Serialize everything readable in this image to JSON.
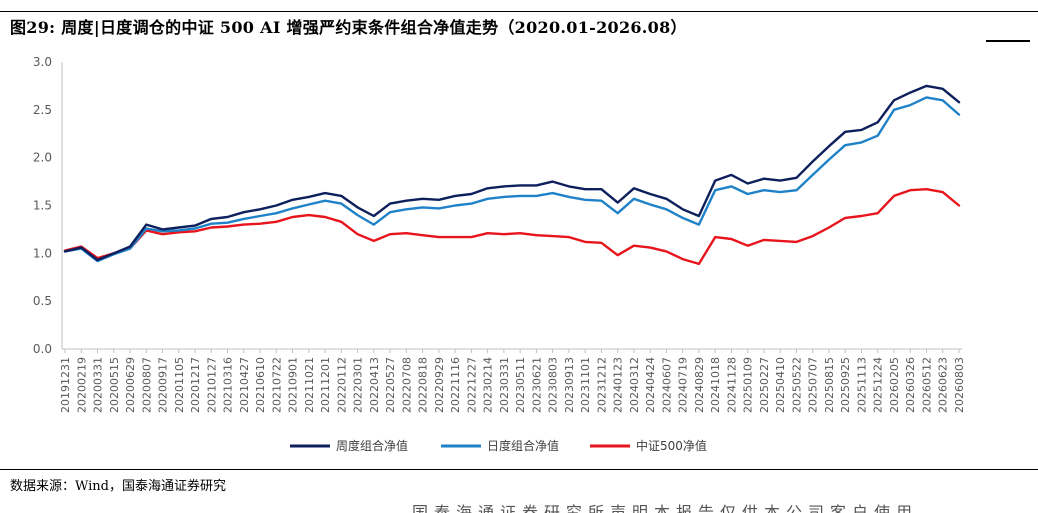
{
  "figure": {
    "title": "图29:  周度|日度调仓的中证 500 AI 增强严约束条件组合净值走势（2020.01-2026.08）",
    "source": "数据来源：Wind，国泰海通证券研究",
    "cutoff_text": "国泰海通证券研究所声明本报告仅供本公司客户使用"
  },
  "chart_data": {
    "type": "line",
    "title": "",
    "xlabel": "",
    "ylabel": "",
    "ylim": [
      0.0,
      3.0
    ],
    "yticks": [
      "0.0",
      "0.5",
      "1.0",
      "1.5",
      "2.0",
      "2.5",
      "3.0"
    ],
    "grid": false,
    "legend_position": "bottom",
    "x": [
      "20191231",
      "20200219",
      "20200331",
      "20200515",
      "20200629",
      "20200807",
      "20200917",
      "20201105",
      "20201217",
      "20210127",
      "20210316",
      "20210427",
      "20210610",
      "20210722",
      "20210901",
      "20211021",
      "20211201",
      "20220112",
      "20220301",
      "20220413",
      "20220527",
      "20220708",
      "20220818",
      "20220929",
      "20221116",
      "20221227",
      "20230214",
      "20230331",
      "20230511",
      "20230621",
      "20230803",
      "20230913",
      "20231101",
      "20231212",
      "20240123",
      "20240312",
      "20240424",
      "20240607",
      "20240719",
      "20240829",
      "20241018",
      "20241128",
      "20250109",
      "20250227",
      "20250410",
      "20250522",
      "20250707",
      "20250815",
      "20250925",
      "20251113",
      "20251224",
      "20260205",
      "20260326",
      "20260512",
      "20260623",
      "20260803"
    ],
    "series": [
      {
        "name": "周度组合净值",
        "color": "#0d1f5c",
        "values": [
          1.02,
          1.06,
          0.93,
          1.0,
          1.07,
          1.3,
          1.25,
          1.27,
          1.29,
          1.36,
          1.38,
          1.43,
          1.46,
          1.5,
          1.56,
          1.59,
          1.63,
          1.6,
          1.48,
          1.39,
          1.52,
          1.55,
          1.57,
          1.56,
          1.6,
          1.62,
          1.68,
          1.7,
          1.71,
          1.71,
          1.75,
          1.7,
          1.67,
          1.67,
          1.53,
          1.68,
          1.62,
          1.57,
          1.46,
          1.39,
          1.76,
          1.82,
          1.73,
          1.78,
          1.76,
          1.79,
          1.96,
          2.12,
          2.27,
          2.29,
          2.37,
          2.6,
          2.68,
          2.75,
          2.72,
          2.58
        ]
      },
      {
        "name": "日度组合净值",
        "color": "#1f82c8",
        "values": [
          1.02,
          1.05,
          0.92,
          0.99,
          1.05,
          1.26,
          1.23,
          1.24,
          1.26,
          1.31,
          1.32,
          1.36,
          1.39,
          1.42,
          1.47,
          1.51,
          1.55,
          1.52,
          1.4,
          1.3,
          1.43,
          1.46,
          1.48,
          1.47,
          1.5,
          1.52,
          1.57,
          1.59,
          1.6,
          1.6,
          1.63,
          1.59,
          1.56,
          1.55,
          1.42,
          1.57,
          1.51,
          1.46,
          1.37,
          1.3,
          1.66,
          1.7,
          1.62,
          1.66,
          1.64,
          1.66,
          1.82,
          1.98,
          2.13,
          2.16,
          2.23,
          2.5,
          2.55,
          2.63,
          2.6,
          2.45
        ]
      },
      {
        "name": "中证500净值",
        "color": "#e8141b",
        "values": [
          1.03,
          1.07,
          0.95,
          1.0,
          1.05,
          1.24,
          1.2,
          1.22,
          1.23,
          1.27,
          1.28,
          1.3,
          1.31,
          1.33,
          1.38,
          1.4,
          1.38,
          1.33,
          1.2,
          1.13,
          1.2,
          1.21,
          1.19,
          1.17,
          1.17,
          1.17,
          1.21,
          1.2,
          1.21,
          1.19,
          1.18,
          1.17,
          1.12,
          1.11,
          0.98,
          1.08,
          1.06,
          1.02,
          0.94,
          0.89,
          1.17,
          1.15,
          1.08,
          1.14,
          1.13,
          1.12,
          1.18,
          1.27,
          1.37,
          1.39,
          1.42,
          1.6,
          1.66,
          1.67,
          1.64,
          1.5
        ]
      }
    ]
  }
}
